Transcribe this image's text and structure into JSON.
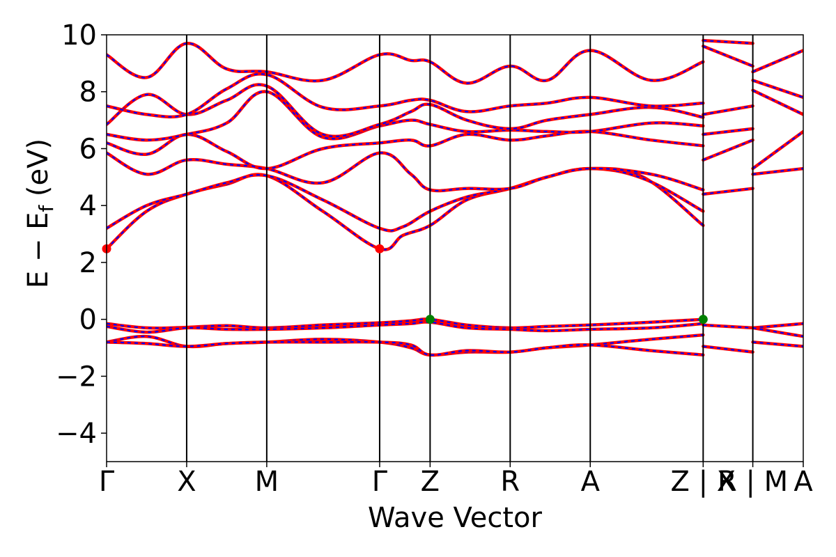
{
  "chart_data": {
    "type": "line",
    "title": "",
    "xlabel": "Wave Vector",
    "ylabel": "E − E",
    "ylabel_subscript": "f",
    "ylabel_unit": " (eV)",
    "ylim": [
      -5,
      10
    ],
    "yticks": [
      -4,
      -2,
      0,
      2,
      4,
      6,
      8,
      10
    ],
    "ytick_labels": [
      "−4",
      "−2",
      "0",
      "2",
      "4",
      "6",
      "8",
      "10"
    ],
    "kpoint_positions": [
      0,
      1.0,
      2.0,
      3.41,
      4.04,
      5.04,
      6.04,
      7.45,
      8.07,
      8.7
    ],
    "xtick_labels": [
      "Γ",
      "X",
      "M",
      "Γ",
      "Z",
      "R",
      "A",
      "Z | X",
      "R | M",
      "A"
    ],
    "segment_breaks": [
      7.45,
      8.07
    ],
    "line_colors": {
      "spin_up": "#0000ff",
      "spin_down": "#ff0000"
    },
    "series": [
      {
        "x": [
          0,
          0.5,
          1.0,
          1.5,
          2.0,
          2.7,
          3.41,
          3.7,
          4.04,
          4.5,
          5.04,
          5.5,
          6.04,
          6.7,
          7.45
        ],
        "values": [
          2.48,
          3.8,
          4.4,
          4.75,
          5.05,
          3.8,
          2.48,
          2.95,
          3.3,
          4.2,
          4.6,
          5.0,
          5.3,
          5.0,
          3.3
        ]
      },
      {
        "x": [
          0,
          0.5,
          1.0,
          1.5,
          2.0,
          2.7,
          3.41,
          3.7,
          4.04,
          4.5,
          5.04,
          5.5,
          6.04,
          6.7,
          7.45
        ],
        "values": [
          3.2,
          4.0,
          4.4,
          4.8,
          5.05,
          4.2,
          3.2,
          3.25,
          3.8,
          4.3,
          4.6,
          5.0,
          5.3,
          4.95,
          3.8
        ]
      },
      {
        "x": [
          0,
          0.5,
          1.0,
          1.5,
          2.0,
          2.7,
          3.41,
          3.8,
          4.04,
          4.5,
          5.04,
          5.5,
          6.04,
          6.8,
          7.45
        ],
        "values": [
          5.85,
          5.1,
          5.6,
          5.45,
          5.3,
          4.8,
          5.85,
          5.1,
          4.55,
          4.6,
          4.6,
          5.0,
          5.3,
          5.1,
          4.55
        ]
      },
      {
        "x": [
          0,
          0.5,
          1.0,
          1.5,
          2.0,
          2.7,
          3.41,
          3.8,
          4.04,
          4.5,
          5.04,
          5.5,
          6.04,
          6.8,
          7.45
        ],
        "values": [
          6.2,
          5.8,
          6.5,
          5.9,
          5.3,
          6.0,
          6.2,
          6.3,
          6.1,
          6.5,
          6.3,
          6.45,
          6.6,
          6.3,
          6.1
        ]
      },
      {
        "x": [
          0,
          0.5,
          1.0,
          1.5,
          2.0,
          2.7,
          3.41,
          3.8,
          4.04,
          4.5,
          5.04,
          5.5,
          6.04,
          6.8,
          7.45
        ],
        "values": [
          6.5,
          6.3,
          6.5,
          6.9,
          8.0,
          6.4,
          6.8,
          7.0,
          6.85,
          6.6,
          6.65,
          6.6,
          6.6,
          6.9,
          6.8
        ]
      },
      {
        "x": [
          0,
          0.5,
          1.0,
          1.5,
          2.0,
          2.7,
          3.41,
          3.8,
          4.04,
          4.5,
          5.04,
          5.5,
          6.04,
          6.8,
          7.45
        ],
        "values": [
          6.85,
          7.9,
          7.2,
          7.7,
          8.2,
          6.5,
          6.85,
          7.3,
          7.55,
          7.0,
          6.7,
          7.0,
          7.2,
          7.45,
          7.1
        ]
      },
      {
        "x": [
          0,
          0.5,
          1.0,
          1.5,
          2.0,
          2.7,
          3.41,
          3.8,
          4.04,
          4.5,
          5.04,
          5.5,
          6.04,
          6.8,
          7.45
        ],
        "values": [
          7.5,
          7.2,
          7.2,
          8.1,
          8.6,
          7.45,
          7.5,
          7.7,
          7.7,
          7.3,
          7.5,
          7.6,
          7.8,
          7.5,
          7.6
        ]
      },
      {
        "x": [
          0,
          0.5,
          1.0,
          1.5,
          2.0,
          2.7,
          3.41,
          3.8,
          4.04,
          4.5,
          5.04,
          5.5,
          6.04,
          6.8,
          7.45
        ],
        "values": [
          9.3,
          8.5,
          9.7,
          8.8,
          8.7,
          8.4,
          9.3,
          9.1,
          9.05,
          8.3,
          8.9,
          8.4,
          9.45,
          8.4,
          9.05
        ]
      },
      {
        "x": [
          0,
          0.5,
          1.0,
          1.5,
          2.0,
          2.7,
          3.41,
          3.8,
          4.04,
          4.5,
          5.04,
          5.5,
          6.04,
          6.8,
          7.45
        ],
        "values": [
          -0.15,
          -0.3,
          -0.28,
          -0.22,
          -0.3,
          -0.2,
          -0.12,
          -0.05,
          0.0,
          -0.2,
          -0.3,
          -0.25,
          -0.2,
          -0.1,
          0.0
        ]
      },
      {
        "x": [
          0,
          0.5,
          1.0,
          1.5,
          2.0,
          2.7,
          3.41,
          3.8,
          4.04,
          4.5,
          5.04,
          5.5,
          6.04,
          6.8,
          7.45
        ],
        "values": [
          -0.25,
          -0.45,
          -0.3,
          -0.35,
          -0.35,
          -0.3,
          -0.2,
          -0.15,
          -0.1,
          -0.3,
          -0.35,
          -0.4,
          -0.35,
          -0.3,
          -0.15
        ]
      },
      {
        "x": [
          0,
          0.5,
          1.0,
          1.5,
          2.0,
          2.7,
          3.41,
          3.8,
          4.04,
          4.5,
          5.04,
          5.5,
          6.04,
          6.8,
          7.45
        ],
        "values": [
          -0.8,
          -0.6,
          -0.95,
          -0.85,
          -0.8,
          -0.7,
          -0.8,
          -1.0,
          -1.25,
          -1.15,
          -1.15,
          -1.0,
          -0.9,
          -0.7,
          -0.55
        ]
      },
      {
        "x": [
          0,
          0.5,
          1.0,
          1.5,
          2.0,
          2.7,
          3.41,
          3.8,
          4.04,
          4.5,
          5.04,
          5.5,
          6.04,
          6.8,
          7.45
        ],
        "values": [
          -0.8,
          -0.85,
          -0.95,
          -0.85,
          -0.8,
          -0.8,
          -0.8,
          -0.9,
          -1.25,
          -1.1,
          -1.15,
          -1.0,
          -0.9,
          -1.1,
          -1.25
        ]
      },
      {
        "x": [
          7.45,
          8.07
        ],
        "values": [
          4.4,
          4.6
        ]
      },
      {
        "x": [
          7.45,
          8.07
        ],
        "values": [
          5.6,
          6.3
        ]
      },
      {
        "x": [
          7.45,
          8.07
        ],
        "values": [
          6.5,
          6.7
        ]
      },
      {
        "x": [
          7.45,
          8.07
        ],
        "values": [
          7.2,
          7.5
        ]
      },
      {
        "x": [
          7.45,
          8.07
        ],
        "values": [
          9.6,
          8.9
        ]
      },
      {
        "x": [
          7.45,
          8.07
        ],
        "values": [
          9.8,
          9.7
        ]
      },
      {
        "x": [
          7.45,
          8.07
        ],
        "values": [
          -0.2,
          -0.3
        ]
      },
      {
        "x": [
          7.45,
          8.07
        ],
        "values": [
          -0.95,
          -1.15
        ]
      },
      {
        "x": [
          8.07,
          8.7
        ],
        "values": [
          5.1,
          5.3
        ]
      },
      {
        "x": [
          8.07,
          8.7
        ],
        "values": [
          5.3,
          6.6
        ]
      },
      {
        "x": [
          8.07,
          8.7
        ],
        "values": [
          8.05,
          7.2
        ]
      },
      {
        "x": [
          8.07,
          8.7
        ],
        "values": [
          8.4,
          7.8
        ]
      },
      {
        "x": [
          8.07,
          8.7
        ],
        "values": [
          8.7,
          9.45
        ]
      },
      {
        "x": [
          8.07,
          8.7
        ],
        "values": [
          -0.3,
          -0.15
        ]
      },
      {
        "x": [
          8.07,
          8.7
        ],
        "values": [
          -0.3,
          -0.6
        ]
      },
      {
        "x": [
          8.07,
          8.7
        ],
        "values": [
          -0.8,
          -0.95
        ]
      }
    ],
    "extrema_markers": [
      {
        "kind": "cbm",
        "x": 0,
        "y": 2.48,
        "color": "#ff0000"
      },
      {
        "kind": "cbm",
        "x": 3.41,
        "y": 2.48,
        "color": "#ff0000"
      },
      {
        "kind": "vbm",
        "x": 4.04,
        "y": 0.0,
        "color": "#008000"
      },
      {
        "kind": "vbm",
        "x": 7.45,
        "y": 0.0,
        "color": "#008000"
      }
    ],
    "grid": false,
    "legend": "none"
  }
}
